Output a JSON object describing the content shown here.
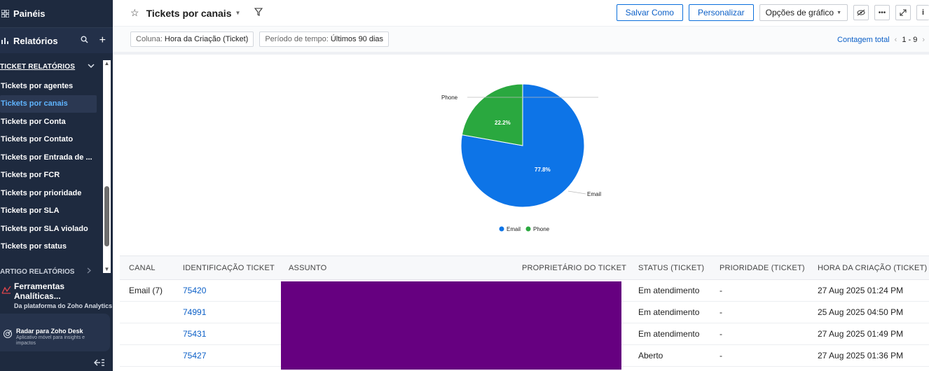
{
  "sidebar": {
    "paineis": "Painéis",
    "relatorios": "Relatórios",
    "section_ticket": "TICKET RELATÓRIOS",
    "items": [
      {
        "label": "Tickets por agentes",
        "active": false
      },
      {
        "label": "Tickets por canais",
        "active": true
      },
      {
        "label": "Tickets por Conta",
        "active": false
      },
      {
        "label": "Tickets por Contato",
        "active": false
      },
      {
        "label": "Tickets por Entrada de ...",
        "active": false
      },
      {
        "label": "Tickets por FCR",
        "active": false
      },
      {
        "label": "Tickets por prioridade",
        "active": false
      },
      {
        "label": "Tickets por SLA",
        "active": false
      },
      {
        "label": "Tickets por SLA violado",
        "active": false
      },
      {
        "label": "Tickets por status",
        "active": false
      }
    ],
    "section_artigo": "ARTIGO RELATÓRIOS",
    "tools_title": "Ferramentas Analíticas...",
    "tools_sub": "Da plataforma do Zoho Analytics",
    "radar_title": "Radar para Zoho Desk",
    "radar_sub": "Aplicativo móvel para insights e impactos"
  },
  "header": {
    "title": "Tickets por canais",
    "save_as": "Salvar Como",
    "customize": "Personalizar",
    "chart_options": "Opções de gráfico"
  },
  "filters": {
    "column_key": "Coluna:",
    "column_value": "Hora da Criação (Ticket)",
    "period_key": "Período de tempo:",
    "period_value": "Últimos 90 dias",
    "count_label": "Contagem total",
    "range": "1 - 9"
  },
  "chart_data": {
    "type": "pie",
    "title": "",
    "slices": [
      {
        "name": "Email",
        "value": 77.8,
        "label": "77.8%",
        "color": "#0d74e7"
      },
      {
        "name": "Phone",
        "value": 22.2,
        "label": "22.2%",
        "color": "#2aa83f"
      }
    ],
    "legend": [
      "Email",
      "Phone"
    ],
    "legend_position": "bottom"
  },
  "table": {
    "headers": [
      "CANAL",
      "IDENTIFICAÇÃO TICKET",
      "ASSUNTO",
      "PROPRIETÁRIO DO TICKET",
      "STATUS (TICKET)",
      "PRIORIDADE (TICKET)",
      "HORA DA CRIAÇÃO (TICKET)"
    ],
    "rows": [
      {
        "canal": "Email (7)",
        "id": "75420",
        "status": "Em atendimento",
        "prioridade": "-",
        "hora": "27 Aug 2025 01:24 PM"
      },
      {
        "canal": "",
        "id": "74991",
        "status": "Em atendimento",
        "prioridade": "-",
        "hora": "25 Aug 2025 04:50 PM"
      },
      {
        "canal": "",
        "id": "75431",
        "status": "Em atendimento",
        "prioridade": "-",
        "hora": "27 Aug 2025 01:49 PM"
      },
      {
        "canal": "",
        "id": "75427",
        "status": "Aberto",
        "prioridade": "-",
        "hora": "27 Aug 2025 01:36 PM"
      }
    ]
  }
}
